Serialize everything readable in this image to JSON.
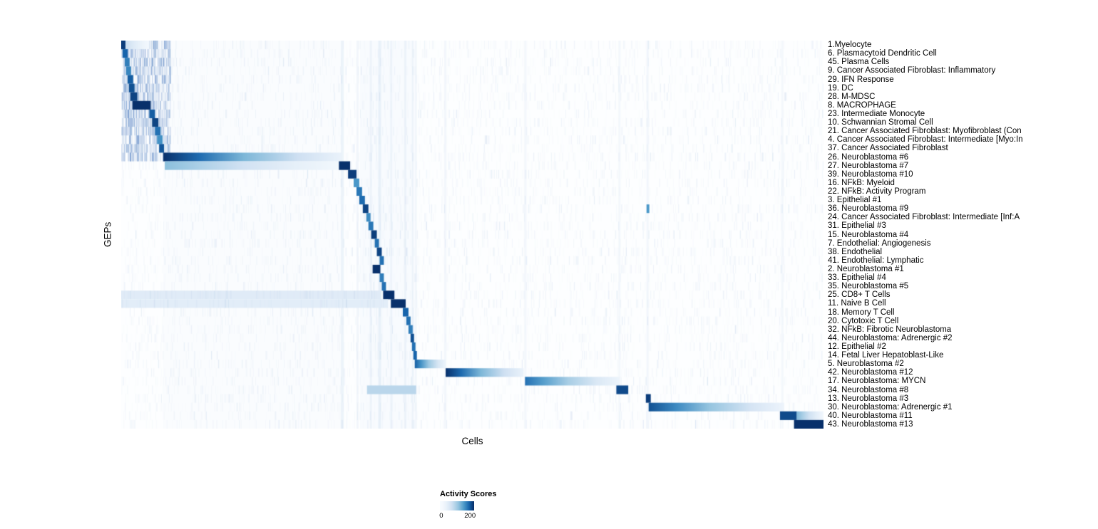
{
  "chart_data": {
    "type": "heatmap",
    "title": "",
    "xlabel": "Cells",
    "ylabel": "GEPs",
    "value_label": "Activity Scores",
    "value_range": [
      0,
      200
    ],
    "legend_ticks": [
      {
        "label": "0",
        "pos": 0.04
      },
      {
        "label": "200",
        "pos": 0.88
      }
    ],
    "colormap": [
      "#f7fbff",
      "#d0e1f2",
      "#94c4df",
      "#4a98c9",
      "#1764ab",
      "#08306b"
    ],
    "background": "#fdfeff",
    "rows": [
      {
        "label": "1.Myelocyte",
        "blocks": [
          {
            "s": 0.0,
            "e": 0.04,
            "peak": 55,
            "fade": "right"
          },
          {
            "s": 0.0,
            "e": 0.006,
            "peak": 190,
            "fade": "flat"
          }
        ]
      },
      {
        "label": "6. Plasmacytoid Dendritic Cell",
        "blocks": [
          {
            "s": 0.002,
            "e": 0.009,
            "peak": 160,
            "fade": "flat"
          }
        ]
      },
      {
        "label": "45. Plasma Cells",
        "blocks": [
          {
            "s": 0.005,
            "e": 0.012,
            "peak": 140,
            "fade": "flat"
          }
        ]
      },
      {
        "label": "9. Cancer Associated Fibroblast: Inflammatory",
        "blocks": [
          {
            "s": 0.007,
            "e": 0.014,
            "peak": 135,
            "fade": "flat"
          }
        ]
      },
      {
        "label": "29. IFN Response",
        "blocks": [
          {
            "s": 0.009,
            "e": 0.017,
            "peak": 165,
            "fade": "flat"
          }
        ]
      },
      {
        "label": "19. DC",
        "blocks": [
          {
            "s": 0.011,
            "e": 0.019,
            "peak": 175,
            "fade": "flat"
          }
        ]
      },
      {
        "label": "28. M-MDSC",
        "blocks": [
          {
            "s": 0.013,
            "e": 0.023,
            "peak": 185,
            "fade": "flat"
          }
        ]
      },
      {
        "label": "8. MACROPHAGE",
        "blocks": [
          {
            "s": 0.016,
            "e": 0.042,
            "peak": 205,
            "fade": "flat"
          }
        ]
      },
      {
        "label": "23. Intermediate Monocyte",
        "blocks": [
          {
            "s": 0.04,
            "e": 0.048,
            "peak": 165,
            "fade": "flat"
          }
        ]
      },
      {
        "label": "10. Schwannian Stromal Cell",
        "blocks": [
          {
            "s": 0.044,
            "e": 0.053,
            "peak": 185,
            "fade": "flat"
          }
        ]
      },
      {
        "label": "21. Cancer Associated Fibroblast: Myofibroblast (Con",
        "blocks": [
          {
            "s": 0.048,
            "e": 0.056,
            "peak": 150,
            "fade": "flat"
          }
        ]
      },
      {
        "label": "4. Cancer Associated Fibroblast: Intermediate [Myo:In",
        "blocks": [
          {
            "s": 0.051,
            "e": 0.059,
            "peak": 125,
            "fade": "flat"
          }
        ]
      },
      {
        "label": "37. Cancer Associated Fibroblast",
        "blocks": [
          {
            "s": 0.054,
            "e": 0.061,
            "peak": 170,
            "fade": "flat"
          }
        ]
      },
      {
        "label": "26. Neuroblastoma #6",
        "blocks": [
          {
            "s": 0.06,
            "e": 0.315,
            "peak": 205,
            "fade": "right"
          }
        ]
      },
      {
        "label": "27. Neuroblastoma #7",
        "blocks": [
          {
            "s": 0.062,
            "e": 0.31,
            "peak": 85,
            "fade": "right"
          },
          {
            "s": 0.31,
            "e": 0.326,
            "peak": 200,
            "fade": "flat"
          }
        ]
      },
      {
        "label": "39. Neuroblastoma #10",
        "blocks": [
          {
            "s": 0.323,
            "e": 0.335,
            "peak": 190,
            "fade": "flat"
          }
        ]
      },
      {
        "label": "16. NFkB: Myeloid",
        "blocks": [
          {
            "s": 0.331,
            "e": 0.339,
            "peak": 120,
            "fade": "flat"
          }
        ]
      },
      {
        "label": "22. NFkB: Activity Program",
        "blocks": [
          {
            "s": 0.335,
            "e": 0.343,
            "peak": 145,
            "fade": "flat"
          }
        ]
      },
      {
        "label": "3. Epithelial #1",
        "blocks": [
          {
            "s": 0.339,
            "e": 0.347,
            "peak": 155,
            "fade": "flat"
          }
        ]
      },
      {
        "label": "36. Neuroblastoma #9",
        "blocks": [
          {
            "s": 0.344,
            "e": 0.352,
            "peak": 185,
            "fade": "flat"
          },
          {
            "s": 0.748,
            "e": 0.752,
            "peak": 120,
            "fade": "flat"
          }
        ]
      },
      {
        "label": "24. Cancer Associated Fibroblast: Intermediate [Inf:A",
        "blocks": [
          {
            "s": 0.349,
            "e": 0.355,
            "peak": 130,
            "fade": "flat"
          }
        ]
      },
      {
        "label": "31. Epithelial #3",
        "blocks": [
          {
            "s": 0.352,
            "e": 0.359,
            "peak": 145,
            "fade": "flat"
          }
        ]
      },
      {
        "label": "15. Neuroblastoma #4",
        "blocks": [
          {
            "s": 0.356,
            "e": 0.364,
            "peak": 190,
            "fade": "flat"
          }
        ]
      },
      {
        "label": "7. Endothelial: Angiogenesis",
        "blocks": [
          {
            "s": 0.361,
            "e": 0.367,
            "peak": 150,
            "fade": "flat"
          }
        ]
      },
      {
        "label": "38. Endothelial",
        "blocks": [
          {
            "s": 0.364,
            "e": 0.371,
            "peak": 185,
            "fade": "flat"
          }
        ]
      },
      {
        "label": "41. Endothelial: Lymphatic",
        "blocks": [
          {
            "s": 0.368,
            "e": 0.374,
            "peak": 150,
            "fade": "flat"
          }
        ]
      },
      {
        "label": "2. Neuroblastoma #1",
        "blocks": [
          {
            "s": 0.358,
            "e": 0.369,
            "peak": 205,
            "fade": "flat"
          }
        ]
      },
      {
        "label": "33. Epithelial #4",
        "blocks": [
          {
            "s": 0.368,
            "e": 0.374,
            "peak": 140,
            "fade": "flat"
          }
        ]
      },
      {
        "label": "35. Neuroblastoma #5",
        "blocks": [
          {
            "s": 0.371,
            "e": 0.377,
            "peak": 150,
            "fade": "flat"
          }
        ]
      },
      {
        "label": "25. CD8+ T Cells",
        "blocks": [
          {
            "s": 0.0,
            "e": 0.37,
            "peak": 24,
            "fade": "flat"
          },
          {
            "s": 0.373,
            "e": 0.389,
            "peak": 205,
            "fade": "flat"
          }
        ]
      },
      {
        "label": "11. Naive B Cell",
        "blocks": [
          {
            "s": 0.0,
            "e": 0.38,
            "peak": 22,
            "fade": "flat"
          },
          {
            "s": 0.384,
            "e": 0.405,
            "peak": 210,
            "fade": "flat"
          }
        ]
      },
      {
        "label": "18. Memory T Cell",
        "blocks": [
          {
            "s": 0.401,
            "e": 0.409,
            "peak": 160,
            "fade": "flat"
          }
        ]
      },
      {
        "label": "20. Cytotoxic T Cell",
        "blocks": [
          {
            "s": 0.406,
            "e": 0.412,
            "peak": 150,
            "fade": "flat"
          }
        ]
      },
      {
        "label": "32. NFkB: Fibrotic Neuroblastoma",
        "blocks": [
          {
            "s": 0.409,
            "e": 0.415,
            "peak": 140,
            "fade": "flat"
          }
        ]
      },
      {
        "label": "44. Neuroblastoma: Adrenergic #2",
        "blocks": [
          {
            "s": 0.412,
            "e": 0.417,
            "peak": 175,
            "fade": "flat"
          }
        ]
      },
      {
        "label": "12. Epithelial #2",
        "blocks": [
          {
            "s": 0.414,
            "e": 0.419,
            "peak": 150,
            "fade": "flat"
          }
        ]
      },
      {
        "label": "14. Fetal Liver Hepatoblast-Like",
        "blocks": [
          {
            "s": 0.416,
            "e": 0.421,
            "peak": 160,
            "fade": "flat"
          }
        ]
      },
      {
        "label": "5. Neuroblastoma #2",
        "blocks": [
          {
            "s": 0.418,
            "e": 0.462,
            "peak": 165,
            "fade": "right"
          }
        ]
      },
      {
        "label": "42. Neuroblastoma #12",
        "blocks": [
          {
            "s": 0.462,
            "e": 0.573,
            "peak": 205,
            "fade": "right"
          }
        ]
      },
      {
        "label": "17. Neuroblastoma: MYCN",
        "blocks": [
          {
            "s": 0.575,
            "e": 0.71,
            "peak": 150,
            "fade": "right"
          }
        ]
      },
      {
        "label": "34. Neuroblastoma #8",
        "blocks": [
          {
            "s": 0.35,
            "e": 0.42,
            "peak": 55,
            "fade": "flat"
          },
          {
            "s": 0.705,
            "e": 0.722,
            "peak": 180,
            "fade": "flat"
          }
        ]
      },
      {
        "label": "13. Neuroblastoma #3",
        "blocks": [
          {
            "s": 0.747,
            "e": 0.754,
            "peak": 190,
            "fade": "flat"
          }
        ]
      },
      {
        "label": "30. Neuroblastoma: Adrenergic #1",
        "blocks": [
          {
            "s": 0.751,
            "e": 0.944,
            "peak": 175,
            "fade": "right"
          }
        ]
      },
      {
        "label": "40. Neuroblastoma #11",
        "blocks": [
          {
            "s": 0.938,
            "e": 0.962,
            "peak": 180,
            "fade": "flat"
          },
          {
            "s": 0.962,
            "e": 1.0,
            "peak": 90,
            "fade": "right"
          }
        ]
      },
      {
        "label": "43. Neuroblastoma #13",
        "blocks": [
          {
            "s": 0.958,
            "e": 1.0,
            "peak": 200,
            "fade": "flat"
          }
        ]
      }
    ],
    "column_streaks": [
      {
        "x": 0.06,
        "w": 0.255,
        "alpha": 0.025
      },
      {
        "x": 0.34,
        "w": 0.08,
        "alpha": 0.03
      },
      {
        "x": 0.313,
        "w": 0.004,
        "alpha": 0.1
      },
      {
        "x": 0.335,
        "w": 0.003,
        "alpha": 0.08
      },
      {
        "x": 0.354,
        "w": 0.003,
        "alpha": 0.08
      },
      {
        "x": 0.366,
        "w": 0.004,
        "alpha": 0.1
      },
      {
        "x": 0.383,
        "w": 0.003,
        "alpha": 0.07
      },
      {
        "x": 0.403,
        "w": 0.003,
        "alpha": 0.08
      },
      {
        "x": 0.414,
        "w": 0.002,
        "alpha": 0.08
      },
      {
        "x": 0.419,
        "w": 0.002,
        "alpha": 0.06
      },
      {
        "x": 0.46,
        "w": 0.003,
        "alpha": 0.07
      },
      {
        "x": 0.574,
        "w": 0.003,
        "alpha": 0.07
      },
      {
        "x": 0.708,
        "w": 0.003,
        "alpha": 0.06
      },
      {
        "x": 0.748,
        "w": 0.003,
        "alpha": 0.07
      },
      {
        "x": 0.94,
        "w": 0.003,
        "alpha": 0.06
      }
    ],
    "noise": {
      "seed": 42,
      "speckles_per_row": 260,
      "speckle_alpha": 0.13,
      "left_region": 0.07,
      "left_rows": 14,
      "left_speckles": 90,
      "left_alpha": 0.33
    }
  }
}
